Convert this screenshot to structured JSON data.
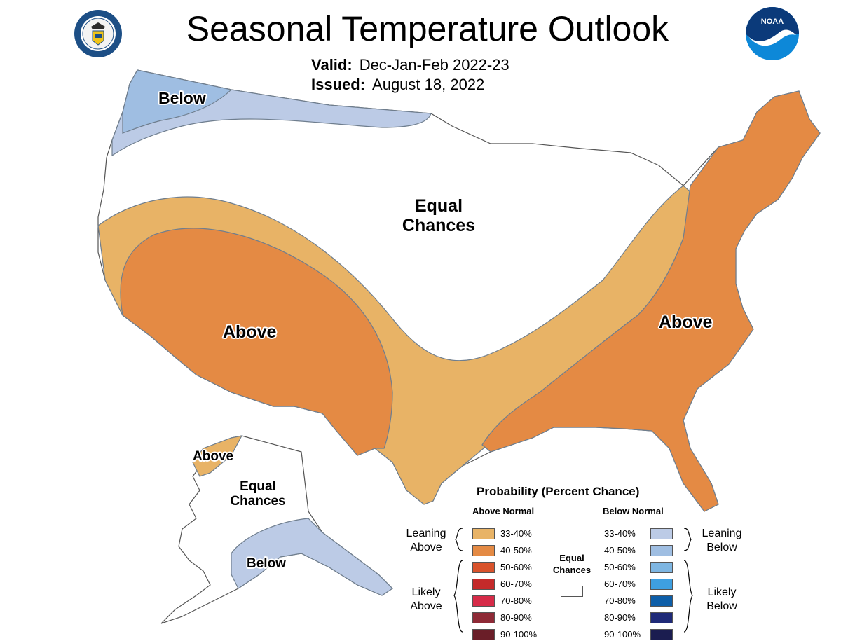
{
  "header": {
    "title": "Seasonal Temperature Outlook",
    "valid_label": "Valid:",
    "valid_value": "Dec-Jan-Feb 2022-23",
    "issued_label": "Issued:",
    "issued_value": "August 18, 2022"
  },
  "logos": [
    {
      "name": "commerce-seal-icon",
      "text": "DEPARTMENT OF COMMERCE UNITED STATES OF AMERICA"
    },
    {
      "name": "noaa-logo-icon",
      "text": "NOAA"
    }
  ],
  "map_labels": {
    "conus_below": "Below",
    "conus_equal_1": "Equal",
    "conus_equal_2": "Chances",
    "conus_above_west": "Above",
    "conus_above_east": "Above",
    "ak_above": "Above",
    "ak_equal_1": "Equal",
    "ak_equal_2": "Chances",
    "ak_below": "Below"
  },
  "colors": {
    "above_33_40": "#e8b366",
    "above_40_50": "#e48a44",
    "above_50_60": "#d9532c",
    "above_60_70": "#c42a2a",
    "above_70_80": "#d62b48",
    "above_80_90": "#8e2a36",
    "above_90_100": "#6a1e28",
    "below_33_40": "#bccbe6",
    "below_40_50": "#9fbee2",
    "below_50_60": "#7eb6e2",
    "below_60_70": "#3e9fe0",
    "below_70_80": "#0d5ea8",
    "below_80_90": "#1f2a78",
    "below_90_100": "#1b1d50",
    "equal": "#ffffff"
  },
  "legend": {
    "title": "Probability (Percent Chance)",
    "above_header": "Above Normal",
    "below_header": "Below Normal",
    "above_items": [
      "33-40%",
      "40-50%",
      "50-60%",
      "60-70%",
      "70-80%",
      "80-90%",
      "90-100%"
    ],
    "below_items": [
      "33-40%",
      "40-50%",
      "50-60%",
      "60-70%",
      "70-80%",
      "80-90%",
      "90-100%"
    ],
    "leaning_above_1": "Leaning",
    "leaning_above_2": "Above",
    "likely_above_1": "Likely",
    "likely_above_2": "Above",
    "leaning_below_1": "Leaning",
    "leaning_below_2": "Below",
    "likely_below_1": "Likely",
    "likely_below_2": "Below",
    "equal_1": "Equal",
    "equal_2": "Chances"
  }
}
